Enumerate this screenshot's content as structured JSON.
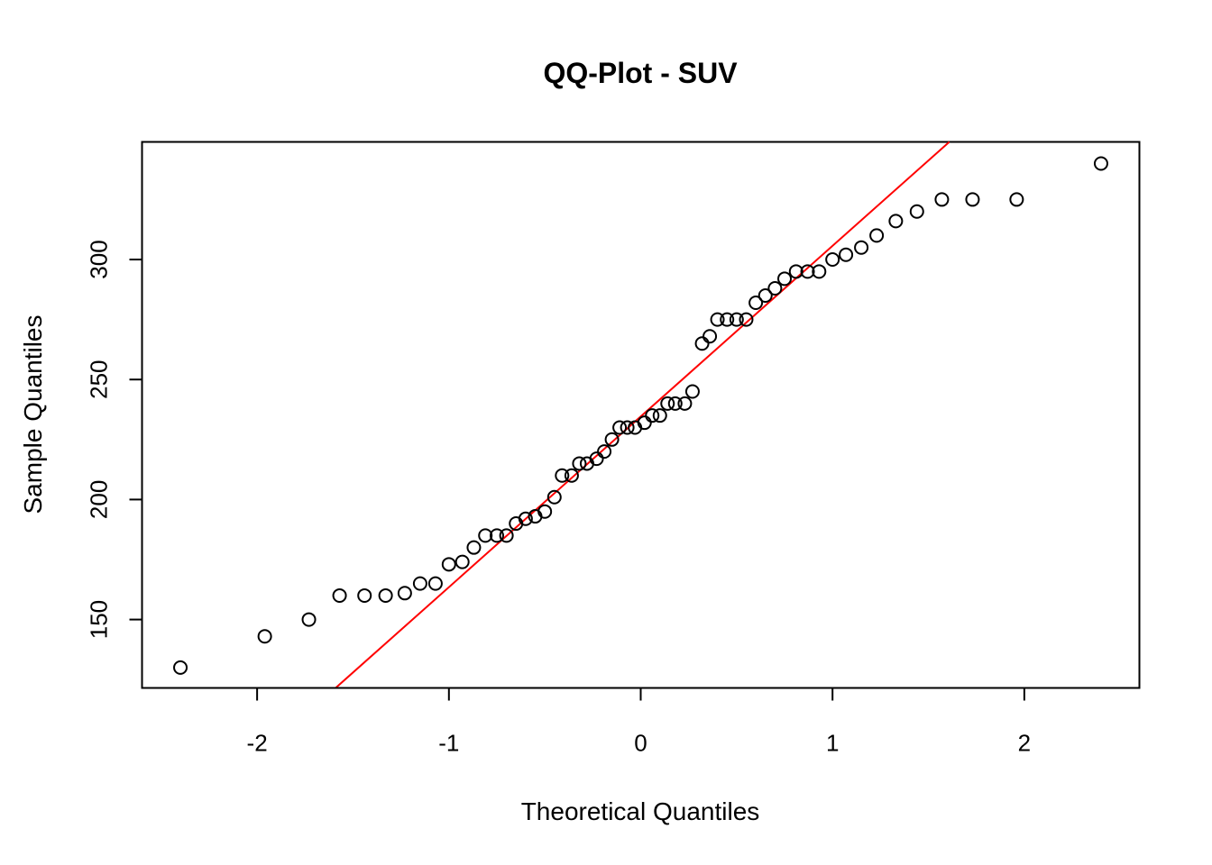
{
  "chart_data": {
    "type": "scatter",
    "title": "QQ-Plot - SUV",
    "xlabel": "Theoretical Quantiles",
    "ylabel": "Sample Quantiles",
    "xlim": [
      -2.6,
      2.6
    ],
    "ylim": [
      121.5,
      349
    ],
    "x_ticks": [
      -2,
      -1,
      0,
      1,
      2
    ],
    "x_tick_labels": [
      "-2",
      "-1",
      "0",
      "1",
      "2"
    ],
    "y_ticks": [
      150,
      200,
      250,
      300
    ],
    "y_tick_labels": [
      "150",
      "200",
      "250",
      "300"
    ],
    "grid": false,
    "legend": "none",
    "point_color": "#000000",
    "reference_line": {
      "color": "#ff0000",
      "intercept": 234.6,
      "slope": 71.1
    },
    "points": [
      {
        "x": -2.4,
        "y": 130
      },
      {
        "x": -1.96,
        "y": 143
      },
      {
        "x": -1.73,
        "y": 150
      },
      {
        "x": -1.57,
        "y": 160
      },
      {
        "x": -1.44,
        "y": 160
      },
      {
        "x": -1.33,
        "y": 160
      },
      {
        "x": -1.23,
        "y": 161
      },
      {
        "x": -1.15,
        "y": 165
      },
      {
        "x": -1.07,
        "y": 165
      },
      {
        "x": -1.0,
        "y": 173
      },
      {
        "x": -0.93,
        "y": 174
      },
      {
        "x": -0.87,
        "y": 180
      },
      {
        "x": -0.81,
        "y": 185
      },
      {
        "x": -0.75,
        "y": 185
      },
      {
        "x": -0.7,
        "y": 185
      },
      {
        "x": -0.65,
        "y": 190
      },
      {
        "x": -0.6,
        "y": 192
      },
      {
        "x": -0.55,
        "y": 193
      },
      {
        "x": -0.5,
        "y": 195
      },
      {
        "x": -0.45,
        "y": 201
      },
      {
        "x": -0.41,
        "y": 210
      },
      {
        "x": -0.36,
        "y": 210
      },
      {
        "x": -0.32,
        "y": 215
      },
      {
        "x": -0.28,
        "y": 215
      },
      {
        "x": -0.23,
        "y": 217
      },
      {
        "x": -0.19,
        "y": 220
      },
      {
        "x": -0.15,
        "y": 225
      },
      {
        "x": -0.11,
        "y": 230
      },
      {
        "x": -0.07,
        "y": 230
      },
      {
        "x": -0.03,
        "y": 230
      },
      {
        "x": 0.02,
        "y": 232
      },
      {
        "x": 0.06,
        "y": 235
      },
      {
        "x": 0.1,
        "y": 235
      },
      {
        "x": 0.14,
        "y": 240
      },
      {
        "x": 0.18,
        "y": 240
      },
      {
        "x": 0.23,
        "y": 240
      },
      {
        "x": 0.27,
        "y": 245
      },
      {
        "x": 0.32,
        "y": 265
      },
      {
        "x": 0.36,
        "y": 268
      },
      {
        "x": 0.4,
        "y": 275
      },
      {
        "x": 0.45,
        "y": 275
      },
      {
        "x": 0.5,
        "y": 275
      },
      {
        "x": 0.55,
        "y": 275
      },
      {
        "x": 0.6,
        "y": 282
      },
      {
        "x": 0.65,
        "y": 285
      },
      {
        "x": 0.7,
        "y": 288
      },
      {
        "x": 0.75,
        "y": 292
      },
      {
        "x": 0.81,
        "y": 295
      },
      {
        "x": 0.87,
        "y": 295
      },
      {
        "x": 0.93,
        "y": 295
      },
      {
        "x": 1.0,
        "y": 300
      },
      {
        "x": 1.07,
        "y": 302
      },
      {
        "x": 1.15,
        "y": 305
      },
      {
        "x": 1.23,
        "y": 310
      },
      {
        "x": 1.33,
        "y": 316
      },
      {
        "x": 1.44,
        "y": 320
      },
      {
        "x": 1.57,
        "y": 325
      },
      {
        "x": 1.73,
        "y": 325
      },
      {
        "x": 1.96,
        "y": 325
      },
      {
        "x": 2.4,
        "y": 340
      }
    ]
  }
}
